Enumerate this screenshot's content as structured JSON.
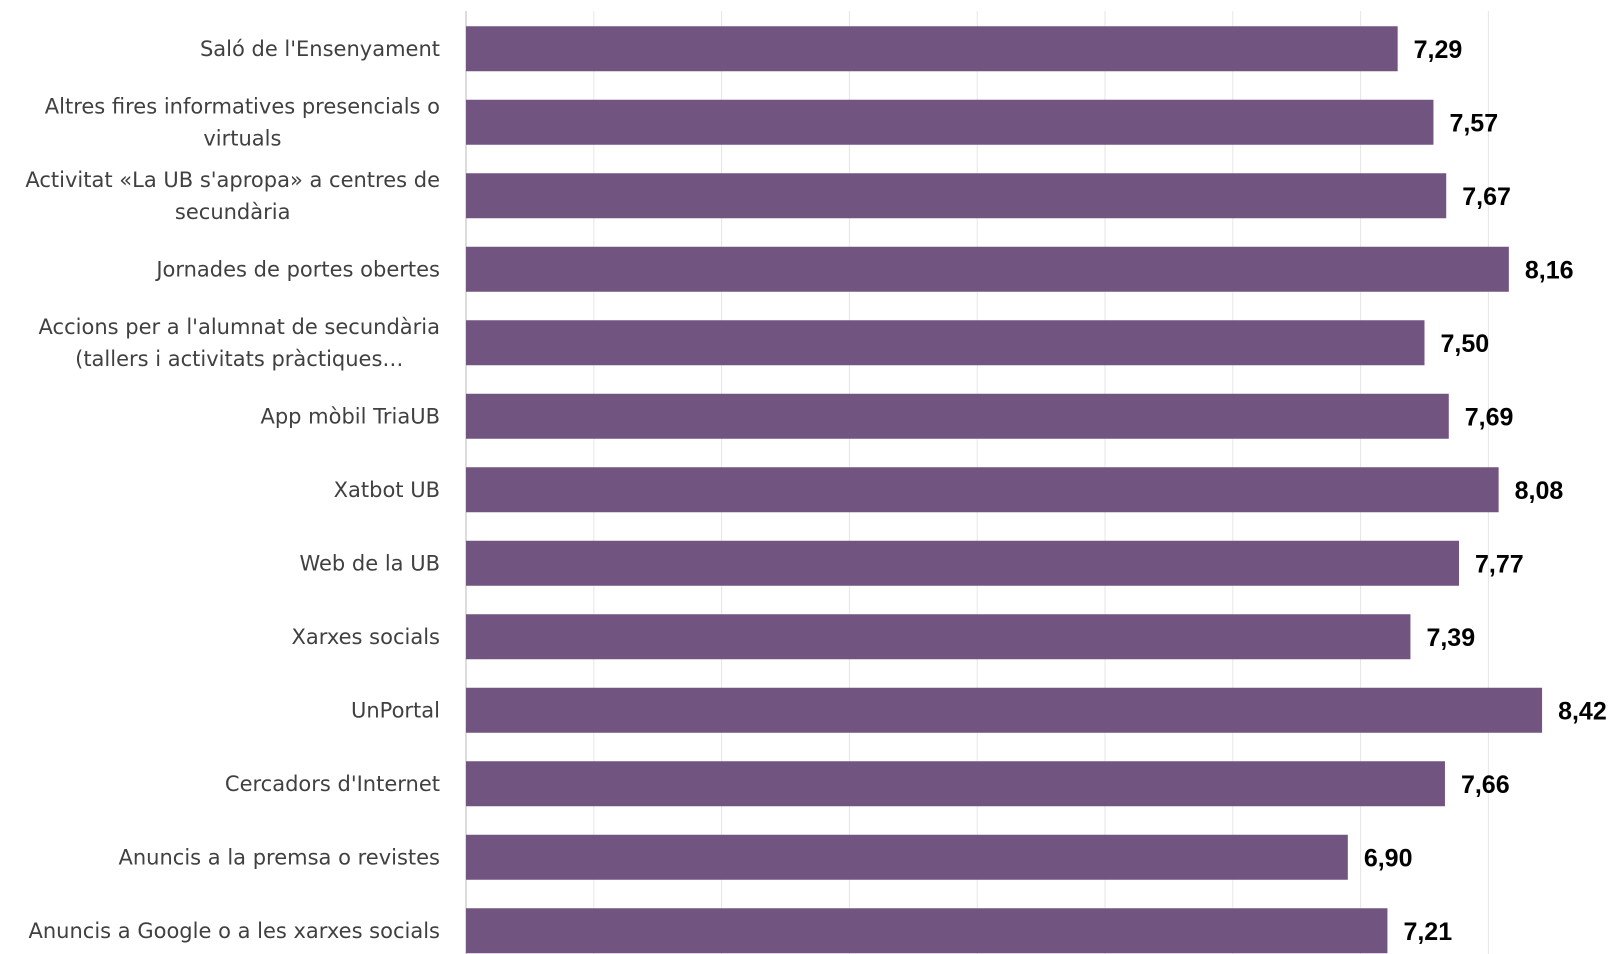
{
  "chart_data": {
    "type": "bar",
    "orientation": "horizontal",
    "categories": [
      "Saló de l'Ensenyament",
      "Altres fires informatives presencials o virtuals",
      "Activitat «La UB s'apropa» a centres de secundària",
      "Jornades de portes obertes",
      "Accions per a l'alumnat de secundària (tallers i activitats pràctiques…",
      "App mòbil TriaUB",
      "Xatbot UB",
      "Web de la UB",
      "Xarxes socials",
      "UnPortal",
      "Cercadors d'Internet",
      "Anuncis a la premsa o revistes",
      "Anuncis a Google o a les xarxes socials"
    ],
    "category_lines": [
      [
        "Saló de l'Ensenyament"
      ],
      [
        "Altres fires informatives presencials o",
        "virtuals"
      ],
      [
        "Activitat «La UB s'apropa» a centres de",
        "secundària"
      ],
      [
        "Jornades de portes obertes"
      ],
      [
        "Accions per a l'alumnat de secundària",
        "(tallers i activitats pràctiques…"
      ],
      [
        "App mòbil TriaUB"
      ],
      [
        "Xatbot UB"
      ],
      [
        "Web de la UB"
      ],
      [
        "Xarxes socials"
      ],
      [
        "UnPortal"
      ],
      [
        "Cercadors d'Internet"
      ],
      [
        "Anuncis a la premsa o revistes"
      ],
      [
        "Anuncis a Google o a les xarxes socials"
      ]
    ],
    "values": [
      7.29,
      7.57,
      7.67,
      8.16,
      7.5,
      7.69,
      8.08,
      7.77,
      7.39,
      8.42,
      7.66,
      6.9,
      7.21
    ],
    "value_labels": [
      "7,29",
      "7,57",
      "7,67",
      "8,16",
      "7,50",
      "7,69",
      "8,08",
      "7,77",
      "7,39",
      "8,42",
      "7,66",
      "6,90",
      "7,21"
    ],
    "xlim": [
      0,
      9
    ],
    "grid": true,
    "legend": "none",
    "title": "",
    "xlabel": "",
    "ylabel": "",
    "colors": {
      "bar": "#725480",
      "grid": "#e6e6e6",
      "axis": "#d0d0d0",
      "category_text": "#404040",
      "value_text": "#000000"
    }
  }
}
